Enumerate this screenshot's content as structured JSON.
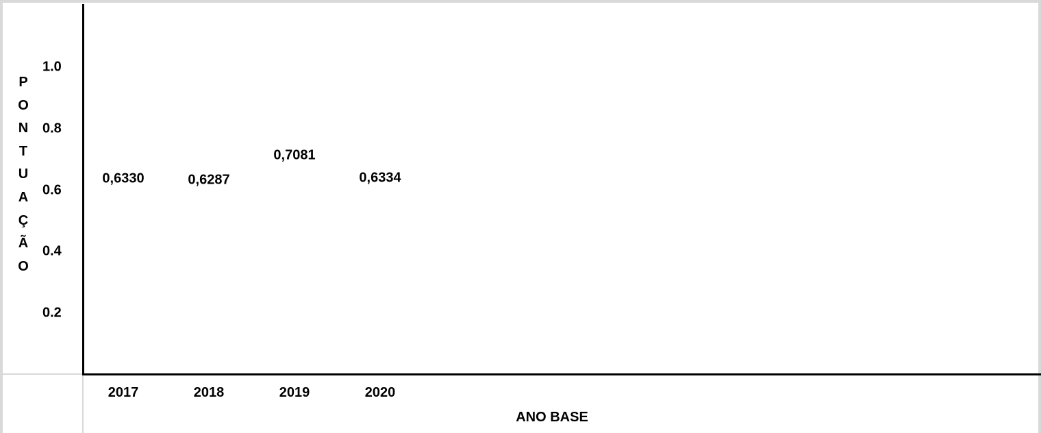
{
  "chart_data": {
    "type": "scatter",
    "categories": [
      "2017",
      "2018",
      "2019",
      "2020"
    ],
    "values": [
      0.633,
      0.6287,
      0.7081,
      0.6334
    ],
    "data_labels": [
      "0,6330",
      "0,6287",
      "0,7081",
      "0,6334"
    ],
    "yticks": [
      "1.0",
      "0.8",
      "0.6",
      "0.4",
      "0.2"
    ],
    "ytick_values": [
      1.0,
      0.8,
      0.6,
      0.4,
      0.2
    ],
    "xlabel": "ANO BASE",
    "ylabel": "PONTUAÇÃO",
    "ylim": [
      0.0,
      1.2
    ],
    "grid": false
  }
}
